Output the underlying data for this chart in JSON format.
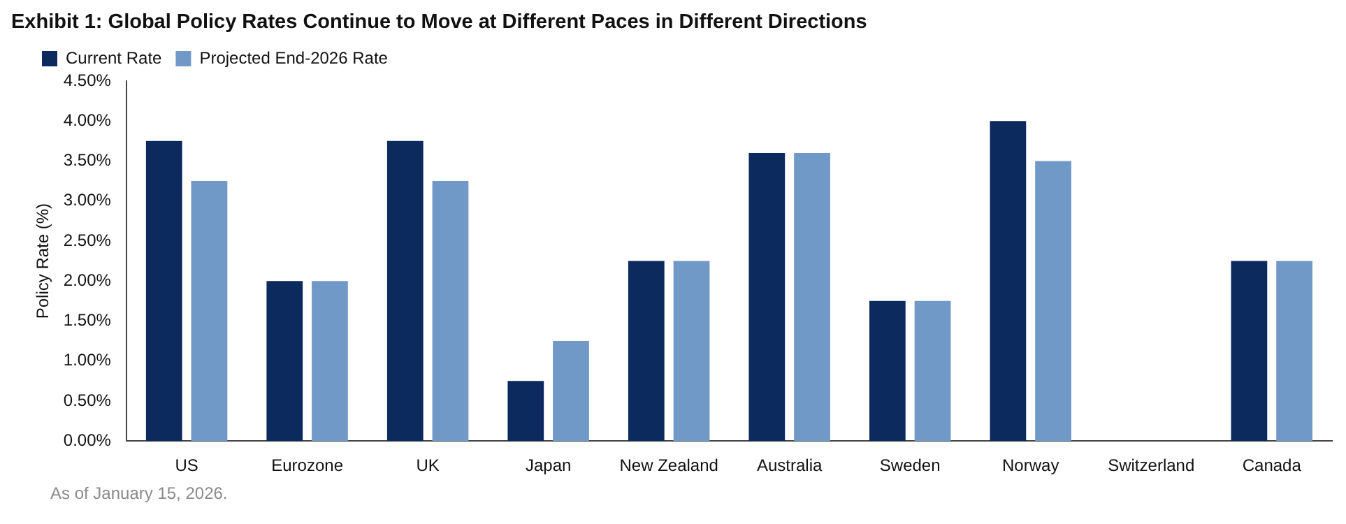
{
  "chart_data": {
    "type": "bar",
    "title": "Exhibit 1: Global Policy Rates Continue to Move at Different Paces in Different Directions",
    "ylabel": "Policy Rate (%)",
    "categories": [
      "US",
      "Eurozone",
      "UK",
      "Japan",
      "New Zealand",
      "Australia",
      "Sweden",
      "Norway",
      "Switzerland",
      "Canada"
    ],
    "series": [
      {
        "name": "Current Rate",
        "color": "#0c2a5e",
        "values": [
          3.75,
          2.0,
          3.75,
          0.75,
          2.25,
          3.6,
          1.75,
          4.0,
          0,
          2.25
        ]
      },
      {
        "name": "Projected End-2026 Rate",
        "color": "#7199c8",
        "values": [
          3.25,
          2.0,
          3.25,
          1.25,
          2.25,
          3.6,
          1.75,
          3.5,
          0,
          2.25
        ]
      }
    ],
    "ylim": [
      0,
      4.5
    ],
    "yticks": [
      {
        "value": 0,
        "label": "0.00%"
      },
      {
        "value": 0.5,
        "label": "0.50%"
      },
      {
        "value": 1,
        "label": "1.00%"
      },
      {
        "value": 1.5,
        "label": "1.50%"
      },
      {
        "value": 2,
        "label": "2.00%"
      },
      {
        "value": 2.5,
        "label": "2.50%"
      },
      {
        "value": 3,
        "label": "3.00%"
      },
      {
        "value": 3.5,
        "label": "3.50%"
      },
      {
        "value": 4,
        "label": "4.00%"
      },
      {
        "value": 4.5,
        "label": "4.50%"
      }
    ],
    "grid": false,
    "legend": "top left",
    "annotations": [
      "As of January 15, 2026."
    ]
  }
}
